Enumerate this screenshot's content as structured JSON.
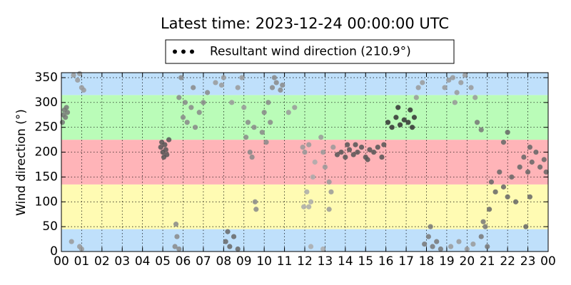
{
  "chart_data": {
    "type": "scatter",
    "title": "Latest time: 2023-12-24 00:00:00 UTC",
    "y_label": "Wind direction (°)",
    "xlim": [
      0,
      24
    ],
    "xticks": [
      {
        "value": 0,
        "label": "00"
      },
      {
        "value": 1,
        "label": "01"
      },
      {
        "value": 2,
        "label": "02"
      },
      {
        "value": 3,
        "label": "03"
      },
      {
        "value": 4,
        "label": "04"
      },
      {
        "value": 5,
        "label": "05"
      },
      {
        "value": 6,
        "label": "06"
      },
      {
        "value": 7,
        "label": "07"
      },
      {
        "value": 8,
        "label": "08"
      },
      {
        "value": 9,
        "label": "09"
      },
      {
        "value": 10,
        "label": "10"
      },
      {
        "value": 11,
        "label": "11"
      },
      {
        "value": 12,
        "label": "12"
      },
      {
        "value": 13,
        "label": "13"
      },
      {
        "value": 14,
        "label": "14"
      },
      {
        "value": 15,
        "label": "15"
      },
      {
        "value": 16,
        "label": "16"
      },
      {
        "value": 17,
        "label": "17"
      },
      {
        "value": 18,
        "label": "18"
      },
      {
        "value": 19,
        "label": "19"
      },
      {
        "value": 20,
        "label": "20"
      },
      {
        "value": 21,
        "label": "21"
      },
      {
        "value": 22,
        "label": "22"
      },
      {
        "value": 23,
        "label": "23"
      },
      {
        "value": 24,
        "label": "00"
      }
    ],
    "ylim": [
      0,
      360
    ],
    "yticks": [
      0,
      50,
      100,
      150,
      200,
      250,
      300,
      350
    ],
    "grid": true,
    "legend": "top",
    "bands": [
      {
        "from": 0,
        "to": 45,
        "color": "#bfe0fb"
      },
      {
        "from": 45,
        "to": 135,
        "color": "#fffbb3"
      },
      {
        "from": 135,
        "to": 225,
        "color": "#ffb4b8"
      },
      {
        "from": 225,
        "to": 315,
        "color": "#bafcb8"
      },
      {
        "from": 315,
        "to": 360,
        "color": "#bfe0fb"
      }
    ],
    "series": [
      {
        "name": "Resultant wind direction (210.9°)",
        "color": "#000000",
        "x": [
          0.05,
          0.1,
          0.15,
          0.2,
          0.25,
          0.3,
          0.5,
          0.6,
          0.8,
          0.9,
          0.9,
          1.0,
          1.0,
          1.1,
          4.9,
          4.95,
          5.0,
          5.05,
          5.1,
          5.15,
          5.2,
          5.3,
          5.6,
          5.65,
          5.7,
          5.8,
          5.8,
          5.9,
          6.0,
          6.1,
          6.2,
          6.4,
          6.5,
          6.6,
          6.8,
          7.0,
          7.2,
          7.6,
          7.9,
          8.0,
          8.1,
          8.2,
          8.3,
          8.5,
          8.7,
          8.4,
          8.7,
          8.9,
          9.0,
          9.1,
          9.2,
          9.3,
          9.4,
          9.5,
          9.55,
          9.6,
          9.9,
          10.0,
          10.1,
          10.2,
          10.3,
          10.4,
          10.5,
          10.6,
          10.8,
          10.9,
          11.2,
          11.5,
          11.9,
          12.0,
          12.2,
          11.95,
          12.1,
          12.2,
          12.3,
          12.4,
          12.5,
          12.3,
          12.9,
          12.8,
          12.9,
          13.0,
          13.2,
          13.2,
          13.3,
          13.4,
          13.6,
          13.8,
          14.0,
          14.1,
          14.2,
          14.4,
          14.5,
          14.6,
          14.8,
          15.0,
          15.1,
          15.2,
          15.4,
          15.6,
          15.8,
          15.9,
          16.1,
          16.3,
          16.5,
          16.6,
          16.7,
          16.9,
          17.1,
          17.2,
          17.3,
          17.4,
          17.5,
          17.6,
          17.8,
          17.9,
          18.1,
          18.2,
          18.3,
          18.5,
          18.7,
          18.9,
          19.1,
          19.3,
          19.4,
          19.5,
          19.7,
          19.9,
          20.2,
          20.4,
          19.2,
          19.6,
          20.0,
          20.3,
          20.5,
          20.7,
          20.7,
          20.8,
          20.9,
          21.0,
          21.1,
          21.2,
          21.4,
          21.6,
          21.8,
          21.8,
          22.0,
          22.0,
          22.2,
          22.4,
          22.6,
          22.8,
          22.9,
          23.0,
          23.1,
          23.1,
          23.2,
          23.4,
          23.6,
          23.8,
          23.9
        ],
        "values": [
          260,
          275,
          285,
          270,
          290,
          280,
          20,
          355,
          345,
          358,
          10,
          330,
          5,
          325,
          210,
          220,
          200,
          190,
          215,
          205,
          195,
          225,
          10,
          55,
          30,
          5,
          310,
          350,
          270,
          300,
          260,
          290,
          330,
          250,
          280,
          300,
          320,
          340,
          335,
          350,
          20,
          40,
          10,
          30,
          5,
          300,
          330,
          350,
          290,
          230,
          260,
          200,
          190,
          250,
          100,
          85,
          240,
          280,
          220,
          300,
          260,
          330,
          350,
          340,
          325,
          335,
          280,
          290,
          210,
          200,
          215,
          90,
          120,
          90,
          100,
          150,
          180,
          10,
          5,
          230,
          200,
          170,
          140,
          85,
          120,
          210,
          195,
          200,
          190,
          215,
          205,
          195,
          215,
          200,
          210,
          190,
          185,
          205,
          200,
          210,
          190,
          215,
          260,
          250,
          270,
          290,
          255,
          265,
          260,
          285,
          250,
          270,
          310,
          330,
          340,
          15,
          30,
          50,
          10,
          20,
          5,
          330,
          345,
          350,
          300,
          320,
          340,
          355,
          330,
          310,
          10,
          20,
          5,
          15,
          260,
          245,
          30,
          60,
          50,
          10,
          85,
          140,
          120,
          160,
          130,
          220,
          110,
          240,
          150,
          100,
          170,
          190,
          50,
          160,
          210,
          110,
          180,
          200,
          170,
          185,
          160
        ],
        "point_colors": [
          "#777",
          "#777",
          "#777",
          "#777",
          "#777",
          "#777",
          "#999",
          "#999",
          "#999",
          "#999",
          "#999",
          "#999",
          "#999",
          "#999",
          "#555",
          "#555",
          "#555",
          "#555",
          "#555",
          "#555",
          "#555",
          "#555",
          "#888",
          "#888",
          "#888",
          "#888",
          "#888",
          "#888",
          "#888",
          "#888",
          "#888",
          "#888",
          "#888",
          "#888",
          "#888",
          "#888",
          "#888",
          "#999",
          "#999",
          "#999",
          "#666",
          "#666",
          "#666",
          "#666",
          "#666",
          "#999",
          "#999",
          "#999",
          "#999",
          "#888",
          "#888",
          "#888",
          "#888",
          "#888",
          "#888",
          "#888",
          "#888",
          "#888",
          "#888",
          "#888",
          "#888",
          "#888",
          "#888",
          "#888",
          "#888",
          "#888",
          "#999",
          "#999",
          "#999",
          "#999",
          "#999",
          "#aaa",
          "#aaa",
          "#aaa",
          "#aaa",
          "#aaa",
          "#aaa",
          "#aaa",
          "#aaa",
          "#999",
          "#999",
          "#999",
          "#999",
          "#999",
          "#999",
          "#999",
          "#555",
          "#555",
          "#555",
          "#555",
          "#555",
          "#555",
          "#555",
          "#555",
          "#555",
          "#555",
          "#555",
          "#555",
          "#555",
          "#555",
          "#555",
          "#555",
          "#333",
          "#333",
          "#333",
          "#333",
          "#333",
          "#333",
          "#333",
          "#333",
          "#333",
          "#333",
          "#999",
          "#999",
          "#999",
          "#777",
          "#777",
          "#777",
          "#777",
          "#777",
          "#777",
          "#999",
          "#999",
          "#999",
          "#999",
          "#999",
          "#999",
          "#999",
          "#999",
          "#999",
          "#999",
          "#999",
          "#999",
          "#999",
          "#777",
          "#777",
          "#777",
          "#777",
          "#777",
          "#777",
          "#666",
          "#666",
          "#666",
          "#666",
          "#666",
          "#666",
          "#666",
          "#666",
          "#666",
          "#666",
          "#666",
          "#666",
          "#666",
          "#666",
          "#666",
          "#666",
          "#666",
          "#666",
          "#666",
          "#666",
          "#666"
        ]
      }
    ]
  }
}
